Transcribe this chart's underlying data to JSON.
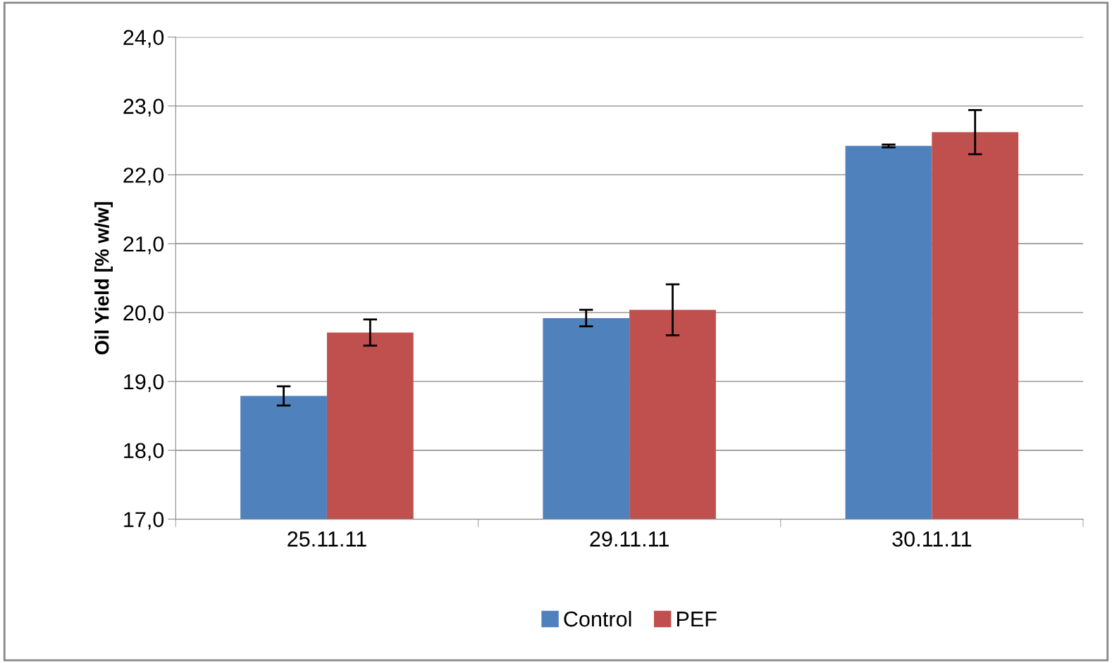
{
  "chart_data": {
    "type": "bar",
    "ylabel": "Oil Yield [% w/w]",
    "categories": [
      "25.11.11",
      "29.11.11",
      "30.11.11"
    ],
    "series": [
      {
        "name": "Control",
        "color": "#4f81bd",
        "values": [
          18.79,
          19.92,
          22.42
        ],
        "errors": [
          0.14,
          0.12,
          0.02
        ]
      },
      {
        "name": "PEF",
        "color": "#c0504d",
        "values": [
          19.71,
          20.04,
          22.62
        ],
        "errors": [
          0.19,
          0.37,
          0.32
        ]
      }
    ],
    "ylim": [
      17,
      24
    ],
    "yticks": [
      {
        "value": 17,
        "label": "17,0"
      },
      {
        "value": 18,
        "label": "18,0"
      },
      {
        "value": 19,
        "label": "19,0"
      },
      {
        "value": 20,
        "label": "20,0"
      },
      {
        "value": 21,
        "label": "21,0"
      },
      {
        "value": 22,
        "label": "22,0"
      },
      {
        "value": 23,
        "label": "23,0"
      },
      {
        "value": 24,
        "label": "24,0"
      }
    ],
    "grid": "y",
    "legend": "bottom"
  }
}
